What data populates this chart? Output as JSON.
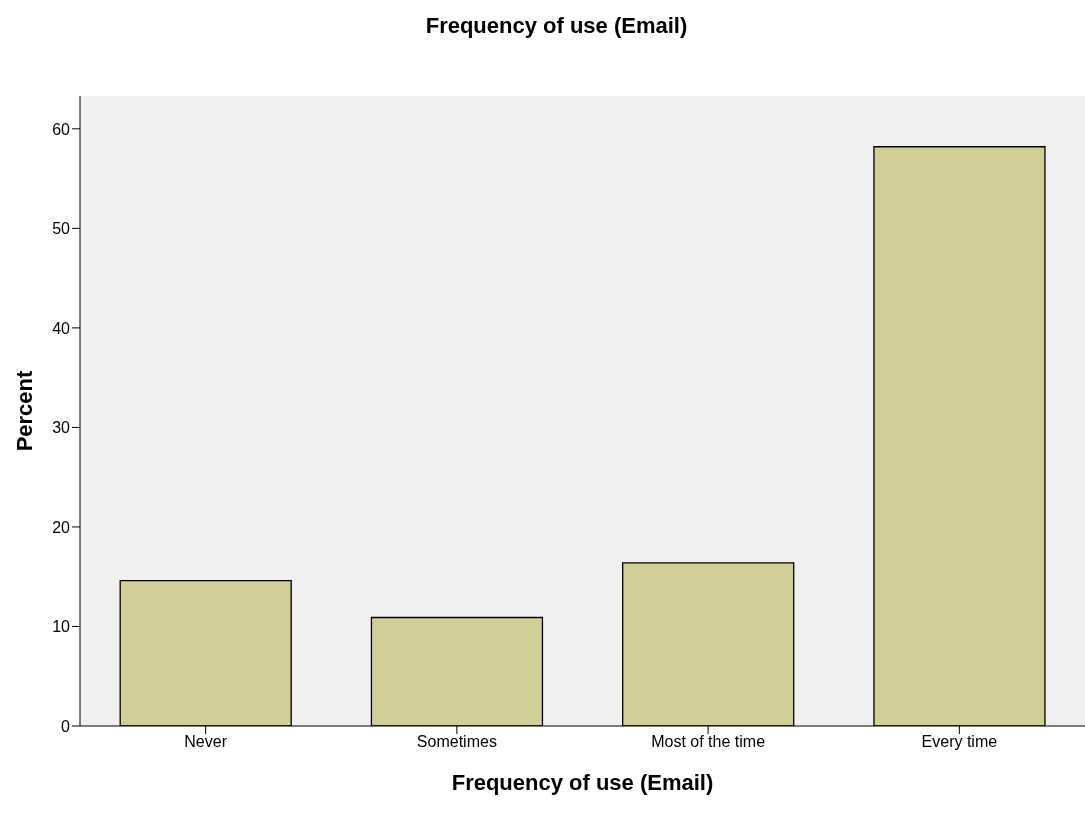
{
  "chart_data": {
    "type": "bar",
    "title": "Frequency of use (Email)",
    "xlabel": "Frequency of use (Email)",
    "ylabel": "Percent",
    "categories": [
      "Never",
      "Sometimes",
      "Most of the time",
      "Every time"
    ],
    "values": [
      14.6,
      10.9,
      16.4,
      58.2
    ],
    "color": "#d3ce97",
    "ylim": [
      0,
      63.3
    ],
    "yticks": [
      0,
      10,
      20,
      30,
      40,
      50,
      60
    ],
    "grid": false
  }
}
